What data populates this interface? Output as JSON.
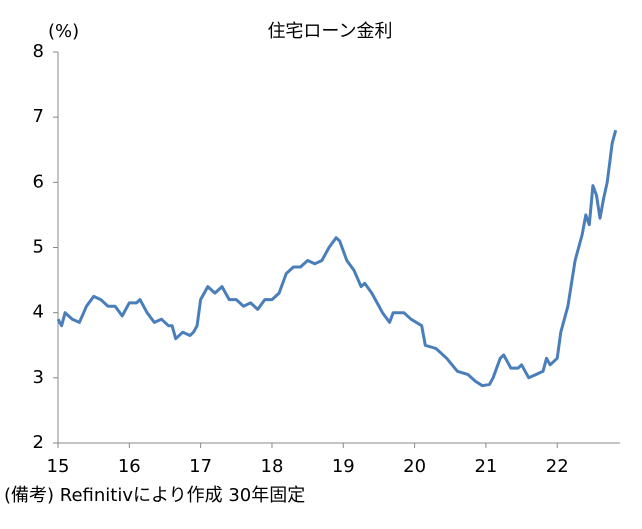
{
  "chart_data": {
    "type": "line",
    "title": "住宅ローン金利",
    "ylabel": "(%)",
    "note": "(備考) Refinitivにより作成 30年固定",
    "x": [
      2015.0,
      2015.05,
      2015.1,
      2015.2,
      2015.3,
      2015.4,
      2015.5,
      2015.6,
      2015.7,
      2015.8,
      2015.9,
      2016.0,
      2016.1,
      2016.15,
      2016.25,
      2016.35,
      2016.45,
      2016.55,
      2016.6,
      2016.65,
      2016.75,
      2016.85,
      2016.9,
      2016.95,
      2017.0,
      2017.1,
      2017.2,
      2017.3,
      2017.4,
      2017.5,
      2017.6,
      2017.7,
      2017.8,
      2017.9,
      2018.0,
      2018.1,
      2018.2,
      2018.3,
      2018.4,
      2018.5,
      2018.6,
      2018.7,
      2018.8,
      2018.9,
      2018.95,
      2019.05,
      2019.15,
      2019.25,
      2019.3,
      2019.4,
      2019.55,
      2019.65,
      2019.7,
      2019.85,
      2019.95,
      2020.1,
      2020.15,
      2020.3,
      2020.45,
      2020.6,
      2020.75,
      2020.85,
      2020.95,
      2021.05,
      2021.1,
      2021.2,
      2021.25,
      2021.35,
      2021.45,
      2021.5,
      2021.6,
      2021.7,
      2021.8,
      2021.85,
      2021.9,
      2022.0,
      2022.05,
      2022.15,
      2022.25,
      2022.35,
      2022.4,
      2022.45,
      2022.5,
      2022.55,
      2022.6,
      2022.65,
      2022.7,
      2022.77,
      2022.82
    ],
    "series": [
      {
        "name": "30年固定",
        "color": "#4a7ebb",
        "values": [
          3.9,
          3.8,
          4.0,
          3.9,
          3.85,
          4.1,
          4.25,
          4.2,
          4.1,
          4.1,
          3.95,
          4.15,
          4.15,
          4.2,
          4.0,
          3.85,
          3.9,
          3.8,
          3.8,
          3.6,
          3.7,
          3.65,
          3.7,
          3.8,
          4.2,
          4.4,
          4.3,
          4.4,
          4.2,
          4.2,
          4.1,
          4.15,
          4.05,
          4.2,
          4.2,
          4.3,
          4.6,
          4.7,
          4.7,
          4.8,
          4.75,
          4.8,
          5.0,
          5.15,
          5.1,
          4.8,
          4.65,
          4.4,
          4.45,
          4.3,
          4.0,
          3.85,
          4.0,
          4.0,
          3.9,
          3.8,
          3.5,
          3.45,
          3.3,
          3.1,
          3.05,
          2.95,
          2.88,
          2.9,
          3.0,
          3.3,
          3.35,
          3.15,
          3.15,
          3.2,
          3.0,
          3.05,
          3.1,
          3.3,
          3.2,
          3.3,
          3.7,
          4.1,
          4.8,
          5.2,
          5.5,
          5.35,
          5.95,
          5.8,
          5.45,
          5.75,
          6.0,
          6.6,
          6.8
        ]
      }
    ],
    "xlim": [
      2015,
      2022.88
    ],
    "xticks": [
      {
        "value": 2015,
        "label": "15"
      },
      {
        "value": 2016,
        "label": "16"
      },
      {
        "value": 2017,
        "label": "17"
      },
      {
        "value": 2018,
        "label": "18"
      },
      {
        "value": 2019,
        "label": "19"
      },
      {
        "value": 2020,
        "label": "20"
      },
      {
        "value": 2021,
        "label": "21"
      },
      {
        "value": 2022,
        "label": "22"
      }
    ],
    "ylim": [
      2,
      8
    ],
    "yticks": [
      2,
      3,
      4,
      5,
      6,
      7,
      8
    ],
    "grid": false
  }
}
